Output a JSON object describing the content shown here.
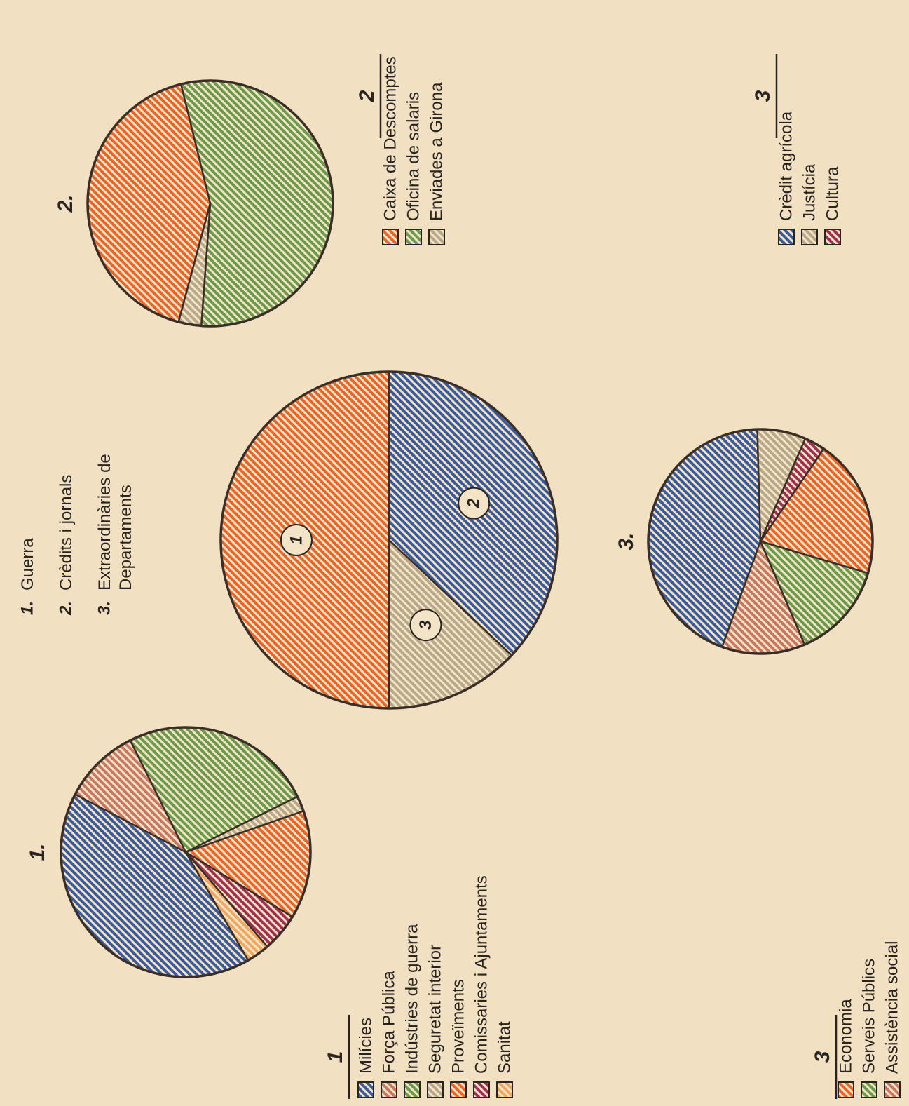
{
  "chart_data": [
    {
      "type": "pie",
      "legend_numbers": [
        "1.",
        "2.",
        "3."
      ],
      "slice_labels": [
        "1",
        "2",
        "3"
      ],
      "categories": [
        "Guerra",
        "Crèdits i jornals",
        "Extraordinàries de Departaments"
      ],
      "values": [
        50,
        37,
        13
      ],
      "colors": [
        "#e8662a",
        "#3a5a9a",
        "#b8a888"
      ]
    },
    {
      "type": "pie",
      "title": "1.",
      "legend_title": "1",
      "categories": [
        "Milícies",
        "Força Pública",
        "Indústries de guerra",
        "Seguretat interior",
        "Proveïments",
        "Comissaries i Ajuntaments",
        "Sanitat"
      ],
      "values": [
        41,
        10,
        25,
        2,
        14,
        5,
        3
      ],
      "colors": [
        "#3a5a9a",
        "#c87860",
        "#6a9a4a",
        "#b8a888",
        "#e8662a",
        "#a03050",
        "#f0a860"
      ]
    },
    {
      "type": "pie",
      "title": "2.",
      "legend_title": "2",
      "categories": [
        "Caixa de Descomptes",
        "Oficina de salaris",
        "Enviades a Girona"
      ],
      "values": [
        42,
        55,
        3
      ],
      "colors": [
        "#e8662a",
        "#6a9a4a",
        "#b8a888"
      ]
    },
    {
      "type": "pie",
      "title": "3.",
      "legend_title": "3",
      "categories": [
        "Crèdit agrícola",
        "Justícia",
        "Cultura",
        "Economia",
        "Serveis Públics",
        "Assistència social"
      ],
      "values": [
        44,
        7,
        3,
        20,
        14,
        12
      ],
      "colors": [
        "#3a5a9a",
        "#b8a888",
        "#a03050",
        "#e8662a",
        "#6a9a4a",
        "#c87860"
      ]
    }
  ]
}
